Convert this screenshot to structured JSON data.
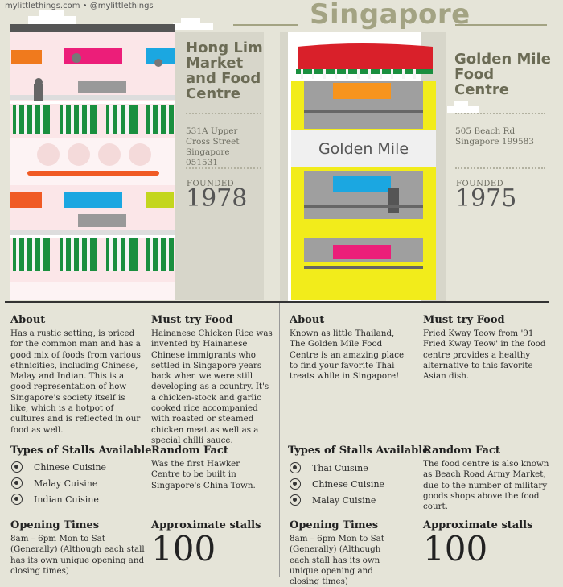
{
  "credit": "mylittlethings.com • @mylittlethings",
  "title": "Singapore",
  "left": {
    "name": "Hong Lim Market and Food Centre",
    "address": "531A Upper Cross Street Singapore 051531",
    "founded_label": "FOUNDED",
    "founded_year": "1978",
    "about_title": "About",
    "about_text": "Has a rustic setting, is priced for the common man and has a good mix of foods from various ethnicities, including Chinese, Malay and Indian. This is a good representation of how Singapore's society itself is like, which is a hotpot of cultures and is reflected in our food as well.",
    "must_title": "Must try Food",
    "must_text": "Hainanese Chicken Rice was invented by Hainanese Chinese immigrants who settled in Singapore years back when we were still developing as a country. It's a chicken-stock and garlic cooked rice accompanied with roasted or steamed chicken meat as well as a special chilli sauce.",
    "types_title": "Types of Stalls Available",
    "stalls": [
      "Chinese Cuisine",
      "Malay Cuisine",
      "Indian Cuisine"
    ],
    "fact_title": "Random Fact",
    "fact_text": "Was the first Hawker Centre to be built in Singapore's China Town.",
    "opening_title": "Opening Times",
    "opening_text": "8am – 6pm Mon to Sat (Generally) (Although each stall has its own unique opening and closing times)",
    "approx_title": "Approximate stalls",
    "approx_value": "100"
  },
  "right": {
    "sign": "Golden Mile",
    "name": "Golden Mile Food Centre",
    "address": "505 Beach Rd Singapore 199583",
    "founded_label": "FOUNDED",
    "founded_year": "1975",
    "about_title": "About",
    "about_text": "Known as little Thailand, The Golden Mile Food Centre is an amazing place to find your favorite Thai treats while in Singapore!",
    "must_title": "Must try Food",
    "must_text": "Fried Kway Teow from '91 Fried Kway Teow' in the food centre provides a healthy alternative to this favorite Asian dish.",
    "types_title": "Types of Stalls Available",
    "stalls": [
      "Thai Cuisine",
      "Chinese Cuisine",
      "Malay Cuisine"
    ],
    "fact_title": "Random Fact",
    "fact_text": "The food centre is also known as Beach Road Army Market, due to the number of military goods shops above the food court.",
    "opening_title": "Opening Times",
    "opening_text": "8am – 6pm Mon to Sat (Generally) (Although each stall has its own unique opening and closing times)",
    "approx_title": "Approximate stalls",
    "approx_value": "100"
  }
}
